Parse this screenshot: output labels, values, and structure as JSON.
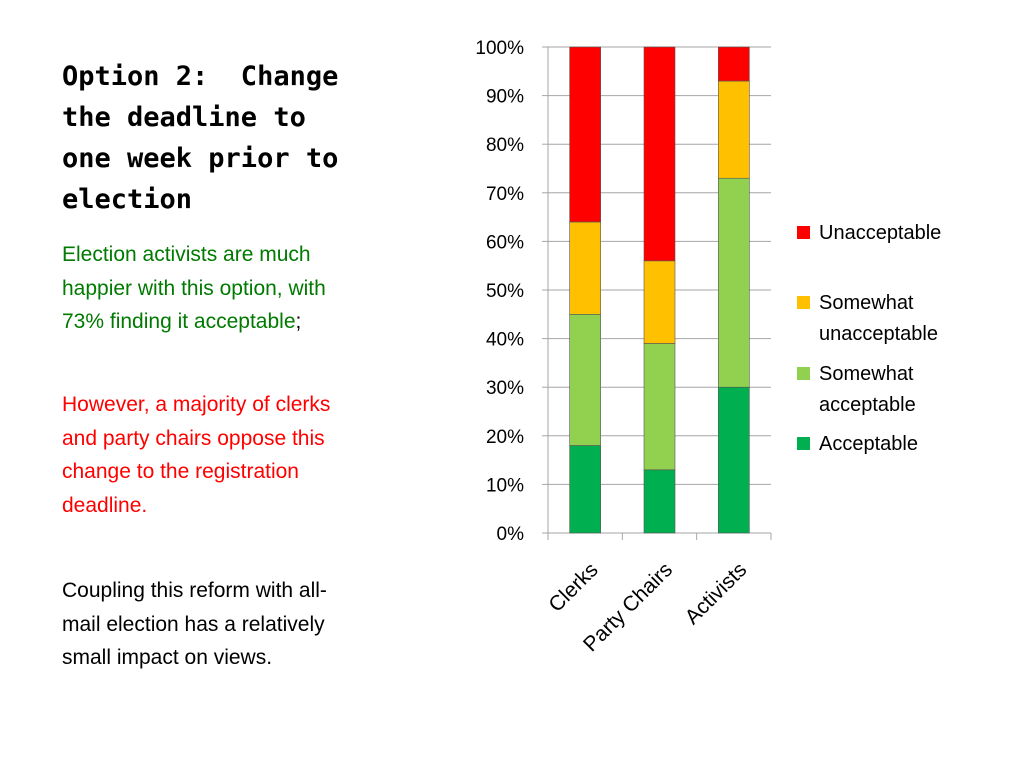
{
  "slide": {
    "title_lines": [
      "Option 2:  Change",
      "the deadline to",
      "one week prior to",
      "election"
    ],
    "paragraphs": [
      {
        "color": "#007a00",
        "lines": [
          "Election activists are much",
          "happier with this option, with",
          "73% finding it acceptable"
        ],
        "suffix": ";"
      },
      {
        "color": "#ff0000",
        "lines": [
          "However,  a majority of clerks",
          "and party chairs oppose this",
          "change to the registration",
          "deadline."
        ]
      },
      {
        "color": "#000000",
        "lines": [
          "Coupling this reform with all-",
          "mail election has a relatively",
          "small impact on views."
        ]
      }
    ]
  },
  "chart_data": {
    "type": "bar",
    "stacked": true,
    "title": "",
    "xlabel": "",
    "ylabel": "",
    "ylim": [
      0,
      100
    ],
    "y_tick_labels": [
      "0%",
      "10%",
      "20%",
      "30%",
      "40%",
      "50%",
      "60%",
      "70%",
      "80%",
      "90%",
      "100%"
    ],
    "categories": [
      "Clerks",
      "Party Chairs",
      "Activists"
    ],
    "series": [
      {
        "name": "Acceptable",
        "color": "#00b050",
        "values": [
          18,
          13,
          30
        ]
      },
      {
        "name": "Somewhat acceptable",
        "color": "#92d050",
        "values": [
          27,
          26,
          43
        ]
      },
      {
        "name": "Somewhat unacceptable",
        "color": "#ffc000",
        "values": [
          19,
          17,
          20
        ]
      },
      {
        "name": "Unacceptable",
        "color": "#ff0000",
        "values": [
          36,
          44,
          7
        ]
      }
    ],
    "legend": {
      "placement": "right",
      "order": [
        "Unacceptable",
        "Somewhat unacceptable",
        "Somewhat acceptable",
        "Acceptable"
      ],
      "wrapped_labels": {
        "Unacceptable": [
          "Unacceptable"
        ],
        "Somewhat unacceptable": [
          "Somewhat",
          "unacceptable"
        ],
        "Somewhat acceptable": [
          "Somewhat",
          "acceptable"
        ],
        "Acceptable": [
          "Acceptable"
        ]
      }
    },
    "grid": true
  }
}
